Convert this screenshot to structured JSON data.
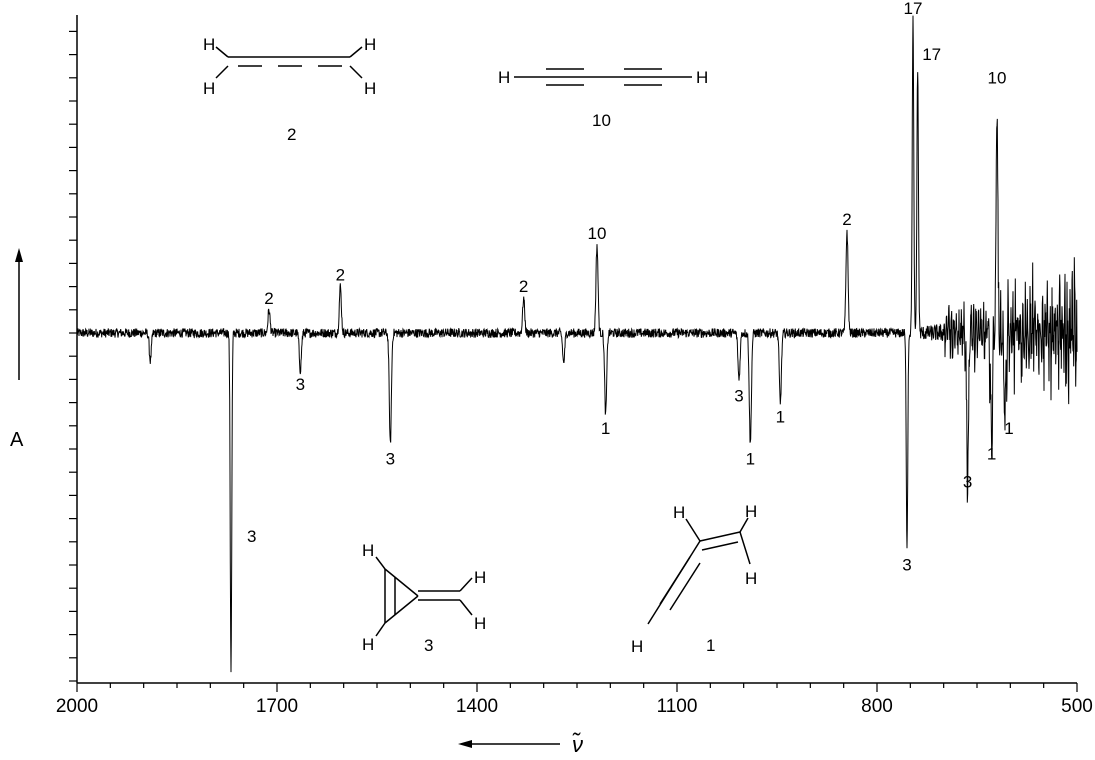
{
  "chart_data": {
    "type": "line",
    "title": "",
    "xlabel": "ν̃",
    "ylabel": "A",
    "x_reversed": true,
    "xlim": [
      2000,
      500
    ],
    "x_ticks": [
      "2000",
      "1700",
      "1400",
      "1100",
      "800",
      "500"
    ],
    "x_tick_values": [
      2000,
      1700,
      1400,
      1100,
      800,
      500
    ],
    "y_ticks_labeled": false,
    "grid": false,
    "series": [
      {
        "peaks": [
          {
            "x": 1890,
            "y": -1.2,
            "label": ""
          },
          {
            "x": 1769,
            "y": -14.5,
            "label": "3"
          },
          {
            "x": 1712,
            "y": 1.0,
            "label": "2"
          },
          {
            "x": 1665,
            "y": -1.6,
            "label": "3"
          },
          {
            "x": 1605,
            "y": 2.0,
            "label": "2"
          },
          {
            "x": 1530,
            "y": -4.8,
            "label": "3"
          },
          {
            "x": 1330,
            "y": 1.5,
            "label": "2"
          },
          {
            "x": 1270,
            "y": -1.3,
            "label": ""
          },
          {
            "x": 1220,
            "y": 3.8,
            "label": "10"
          },
          {
            "x": 1207,
            "y": -3.5,
            "label": "1"
          },
          {
            "x": 1007,
            "y": -2.0,
            "label": "3"
          },
          {
            "x": 990,
            "y": -4.8,
            "label": "1"
          },
          {
            "x": 945,
            "y": -3.0,
            "label": "1"
          },
          {
            "x": 845,
            "y": 4.4,
            "label": "2"
          },
          {
            "x": 755,
            "y": -9.2,
            "label": "3"
          },
          {
            "x": 746,
            "y": 13.5,
            "label": "17"
          },
          {
            "x": 739,
            "y": 11.5,
            "label": "17"
          },
          {
            "x": 664,
            "y": -5.8,
            "label": "3"
          },
          {
            "x": 628,
            "y": -4.6,
            "label": "1"
          },
          {
            "x": 620,
            "y": 10.5,
            "label": "10"
          },
          {
            "x": 608,
            "y": -3.5,
            "label": "1"
          }
        ]
      }
    ],
    "noise_level": 0.2,
    "structures": [
      {
        "label": "2",
        "atoms": [
          "H",
          "H",
          "H",
          "H"
        ]
      },
      {
        "label": "10",
        "atoms": [
          "H",
          "H"
        ]
      },
      {
        "label": "3",
        "atoms": [
          "H",
          "H",
          "H",
          "H"
        ]
      },
      {
        "label": "1",
        "atoms": [
          "H",
          "H",
          "H",
          "H"
        ]
      }
    ]
  }
}
